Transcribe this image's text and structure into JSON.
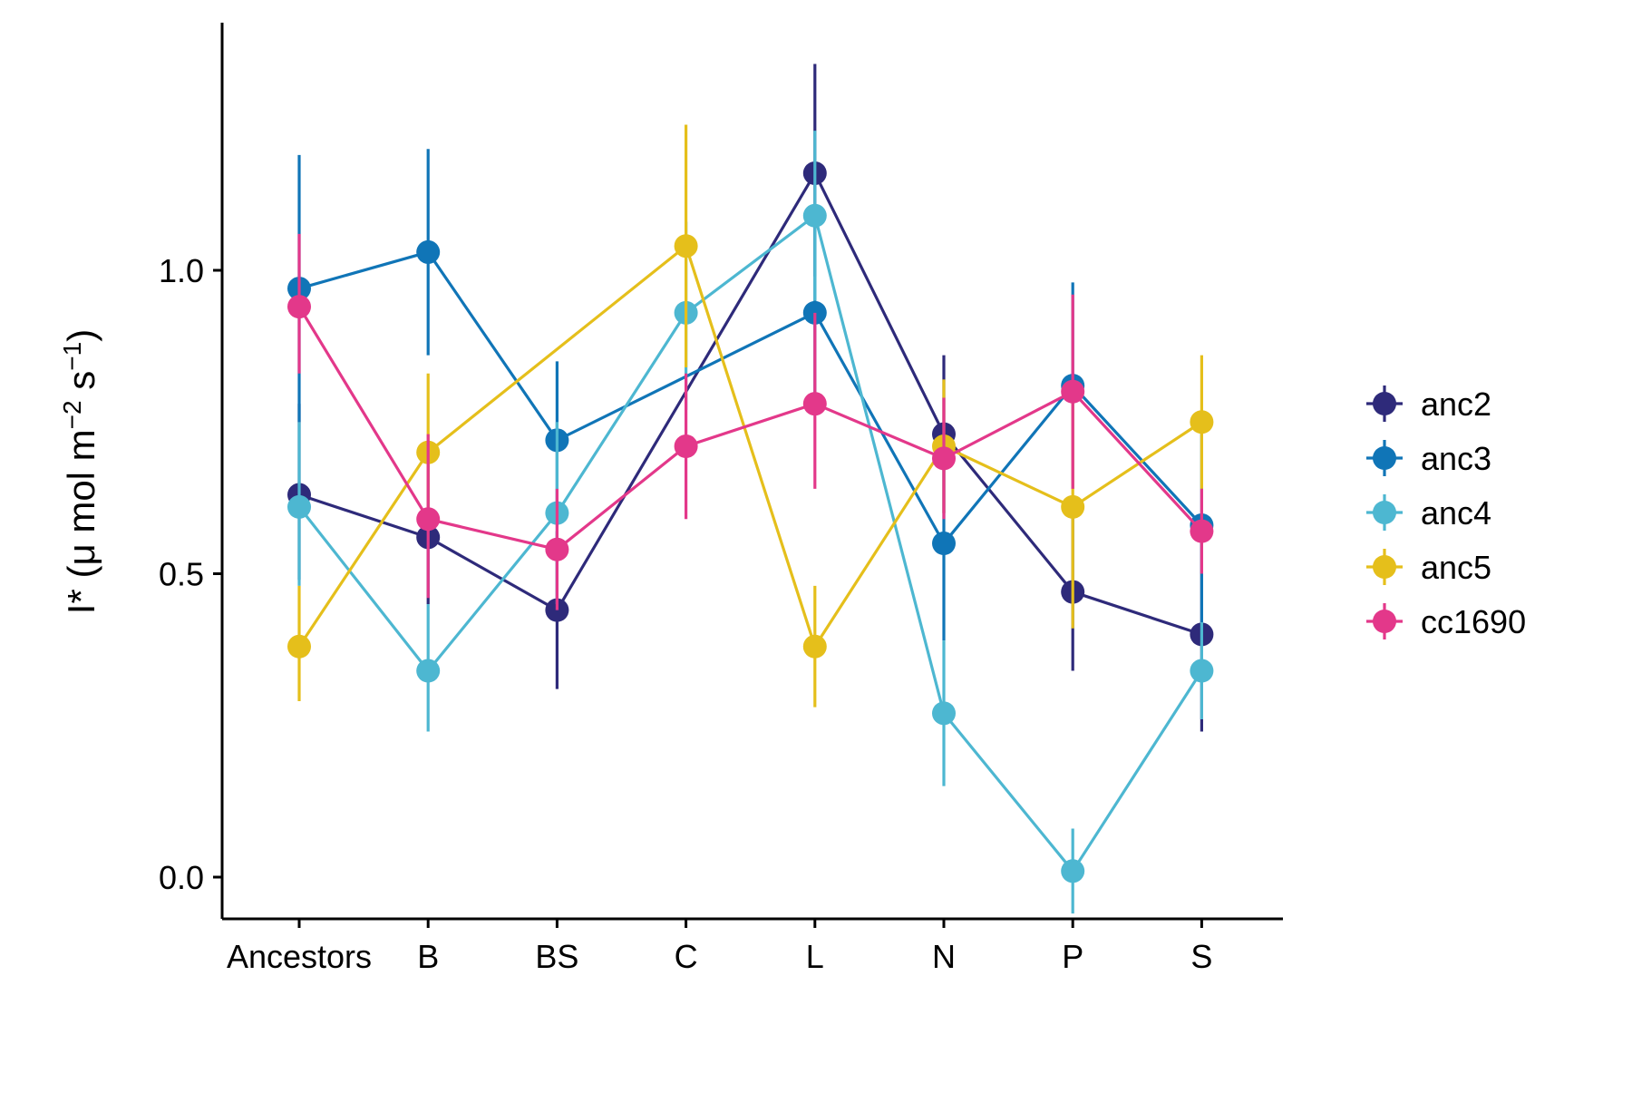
{
  "chart_data": {
    "type": "line",
    "title": "",
    "xlabel": "",
    "ylabel": "I* (μ mol m−2 s−1)",
    "ylabel_parts": {
      "base": "I* (",
      "mu": "μ",
      "mid": " mol m",
      "sup1": "−2",
      "mid2": " s",
      "sup2": "−1",
      "close": ")"
    },
    "categories": [
      "Ancestors",
      "B",
      "BS",
      "C",
      "L",
      "N",
      "P",
      "S"
    ],
    "ylim": [
      -0.06,
      1.41
    ],
    "yticks": [
      0.0,
      0.5,
      1.0
    ],
    "ytick_labels": [
      "0.0",
      "0.5",
      "1.0"
    ],
    "grid": false,
    "legend_position": "right",
    "error_bars": true,
    "series": [
      {
        "name": "anc2",
        "color": "#2e2a7a",
        "values": [
          0.63,
          0.56,
          0.44,
          null,
          1.16,
          0.73,
          0.47,
          0.4
        ],
        "lower": [
          0.49,
          0.45,
          0.31,
          null,
          0.99,
          0.6,
          0.34,
          0.24
        ],
        "upper": [
          0.78,
          0.68,
          0.57,
          null,
          1.34,
          0.86,
          0.6,
          0.55
        ]
      },
      {
        "name": "anc3",
        "color": "#1075b7",
        "values": [
          0.97,
          1.03,
          0.72,
          null,
          0.93,
          0.55,
          0.81,
          0.58
        ],
        "lower": [
          0.75,
          0.86,
          0.59,
          null,
          0.78,
          0.39,
          0.64,
          0.42
        ],
        "upper": [
          1.19,
          1.2,
          0.85,
          null,
          1.09,
          0.71,
          0.98,
          0.74
        ]
      },
      {
        "name": "anc4",
        "color": "#4db7d1",
        "values": [
          0.61,
          0.34,
          0.6,
          0.93,
          1.09,
          0.27,
          0.01,
          0.34
        ],
        "lower": [
          0.48,
          0.24,
          0.45,
          0.77,
          0.95,
          0.15,
          -0.06,
          0.26
        ],
        "upper": [
          0.75,
          0.45,
          0.75,
          1.08,
          1.23,
          0.39,
          0.08,
          0.42
        ]
      },
      {
        "name": "anc5",
        "color": "#e5bf1b",
        "values": [
          0.38,
          0.7,
          null,
          1.04,
          0.38,
          0.71,
          0.61,
          0.75
        ],
        "lower": [
          0.29,
          0.57,
          null,
          0.84,
          0.28,
          0.6,
          0.41,
          0.64
        ],
        "upper": [
          0.48,
          0.83,
          null,
          1.24,
          0.48,
          0.82,
          0.8,
          0.86
        ]
      },
      {
        "name": "cc1690",
        "color": "#e3388a",
        "values": [
          0.94,
          0.59,
          0.54,
          0.71,
          0.78,
          0.69,
          0.8,
          0.57
        ],
        "lower": [
          0.83,
          0.46,
          0.44,
          0.59,
          0.64,
          0.59,
          0.64,
          0.5
        ],
        "upper": [
          1.06,
          0.73,
          0.64,
          0.83,
          0.93,
          0.79,
          0.96,
          0.64
        ]
      }
    ]
  }
}
